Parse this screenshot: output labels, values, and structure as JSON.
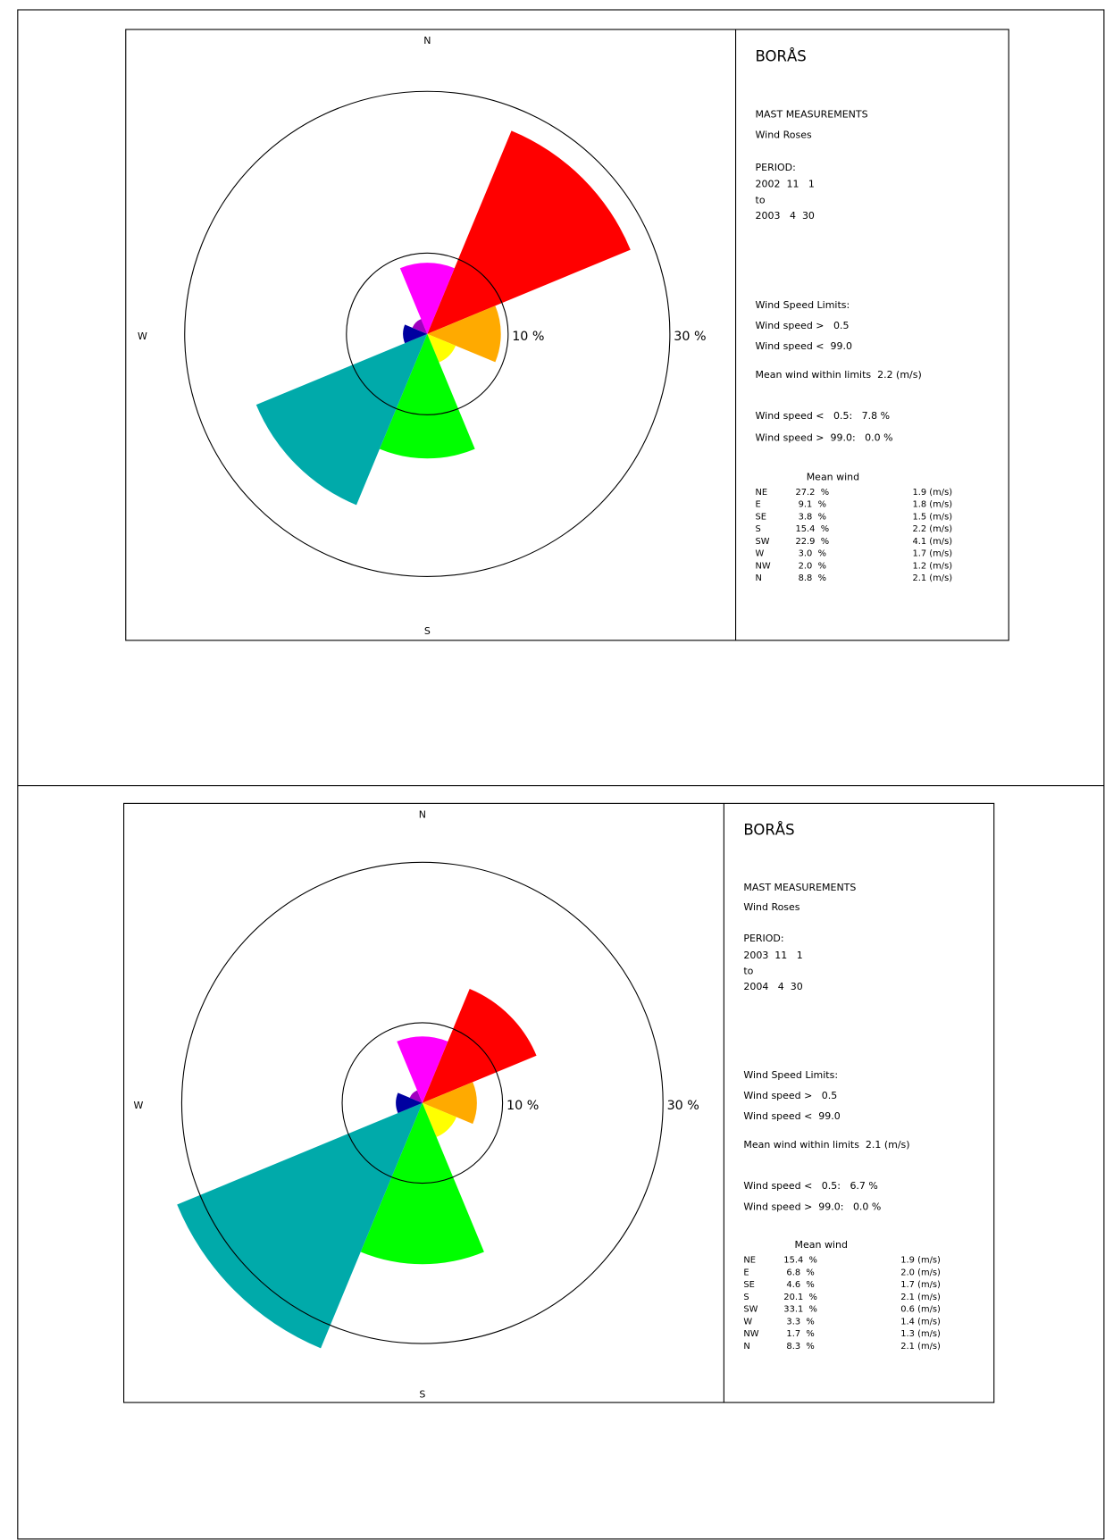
{
  "chart_data": [
    {
      "type": "windrose",
      "compass_labels": {
        "north": "N",
        "west": "W",
        "south": "S"
      },
      "rlim": [
        0,
        30
      ],
      "rticks": [
        {
          "value": 10,
          "label": "10 %"
        },
        {
          "value": 30,
          "label": "30 %"
        }
      ],
      "title": "BORÅS",
      "subtitle": "MAST MEASUREMENTS",
      "caption": "Wind Roses",
      "period_label": "PERIOD:",
      "period": [
        "2002  11   1",
        "to",
        "2003   4  30"
      ],
      "limits_label": "Wind Speed Limits:",
      "limits": [
        "Wind speed >   0.5",
        "Wind speed <  99.0"
      ],
      "mean_within": "Mean wind within limits  2.2 (m/s)",
      "outside": [
        "Wind speed <   0.5:   7.8 %",
        "Wind speed >  99.0:   0.0 %"
      ],
      "table_header": "Mean wind",
      "categories": [
        "NE",
        "E",
        "SE",
        "S",
        "SW",
        "W",
        "NW",
        "N"
      ],
      "values": [
        27.2,
        9.1,
        3.8,
        15.4,
        22.9,
        3.0,
        2.0,
        8.8
      ],
      "value_labels": [
        "27.2  %",
        "9.1  %",
        "3.8  %",
        "15.4  %",
        "22.9  %",
        "3.0  %",
        "2.0  %",
        "8.8  %"
      ],
      "mean_wind": [
        1.9,
        1.8,
        1.5,
        2.2,
        4.1,
        1.7,
        1.2,
        2.1
      ],
      "mean_wind_labels": [
        "1.9 (m/s)",
        "1.8 (m/s)",
        "1.5 (m/s)",
        "2.2 (m/s)",
        "4.1 (m/s)",
        "1.7 (m/s)",
        "1.2 (m/s)",
        "2.1 (m/s)"
      ],
      "colors": [
        "#ff0000",
        "#ffaa00",
        "#ffff00",
        "#00ff00",
        "#00aaaa",
        "#0000a0",
        "#a000c0",
        "#ff00ff"
      ]
    },
    {
      "type": "windrose",
      "compass_labels": {
        "north": "N",
        "west": "W",
        "south": "S"
      },
      "rlim": [
        0,
        30
      ],
      "rticks": [
        {
          "value": 10,
          "label": "10 %"
        },
        {
          "value": 30,
          "label": "30 %"
        }
      ],
      "title": "BORÅS",
      "subtitle": "MAST MEASUREMENTS",
      "caption": "Wind Roses",
      "period_label": "PERIOD:",
      "period": [
        "2003  11   1",
        "to",
        "2004   4  30"
      ],
      "limits_label": "Wind Speed Limits:",
      "limits": [
        "Wind speed >   0.5",
        "Wind speed <  99.0"
      ],
      "mean_within": "Mean wind within limits  2.1 (m/s)",
      "outside": [
        "Wind speed <   0.5:   6.7 %",
        "Wind speed >  99.0:   0.0 %"
      ],
      "table_header": "Mean wind",
      "categories": [
        "NE",
        "E",
        "SE",
        "S",
        "SW",
        "W",
        "NW",
        "N"
      ],
      "values": [
        15.4,
        6.8,
        4.6,
        20.1,
        33.1,
        3.3,
        1.7,
        8.3
      ],
      "value_labels": [
        "15.4  %",
        "6.8  %",
        "4.6  %",
        "20.1  %",
        "33.1  %",
        "3.3  %",
        "1.7  %",
        "8.3  %"
      ],
      "mean_wind": [
        1.9,
        2.0,
        1.7,
        2.1,
        0.6,
        1.4,
        1.3,
        2.1
      ],
      "mean_wind_labels": [
        "1.9 (m/s)",
        "2.0 (m/s)",
        "1.7 (m/s)",
        "2.1 (m/s)",
        "0.6 (m/s)",
        "1.4 (m/s)",
        "1.3 (m/s)",
        "2.1 (m/s)"
      ],
      "colors": [
        "#ff0000",
        "#ffaa00",
        "#ffff00",
        "#00ff00",
        "#00aaaa",
        "#0000a0",
        "#a000c0",
        "#ff00ff"
      ]
    }
  ]
}
